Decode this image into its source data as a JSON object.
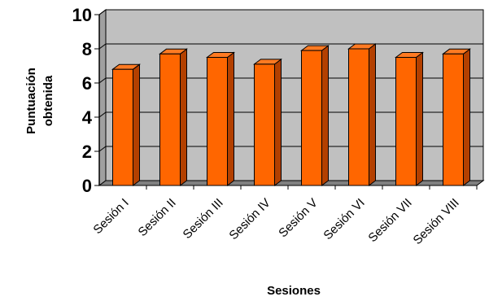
{
  "chart_data": {
    "type": "bar",
    "style": "3d-column",
    "categories": [
      "Sesión I",
      "Sesión II",
      "Sesión III",
      "Sesión IV",
      "Sesión V",
      "Sesión VI",
      "Sesión VII",
      "Sesión VIII"
    ],
    "values": [
      6.8,
      7.7,
      7.5,
      7.1,
      7.9,
      8.0,
      7.5,
      7.7
    ],
    "yticks": [
      "0",
      "2",
      "4",
      "6",
      "8",
      "10"
    ],
    "ylim": [
      0,
      10
    ],
    "xlabel": "Sesiones",
    "ylabel_line1": "Puntuación",
    "ylabel_line2": "obtenida",
    "grid": true,
    "legend": "none",
    "colors": {
      "bar_front": "#FF6600",
      "bar_side": "#B34000",
      "bar_top": "#FF7A22",
      "bar_outline": "#000000",
      "wall": "#C0C0C0",
      "floor": "#808080",
      "gridline": "#000000"
    }
  }
}
